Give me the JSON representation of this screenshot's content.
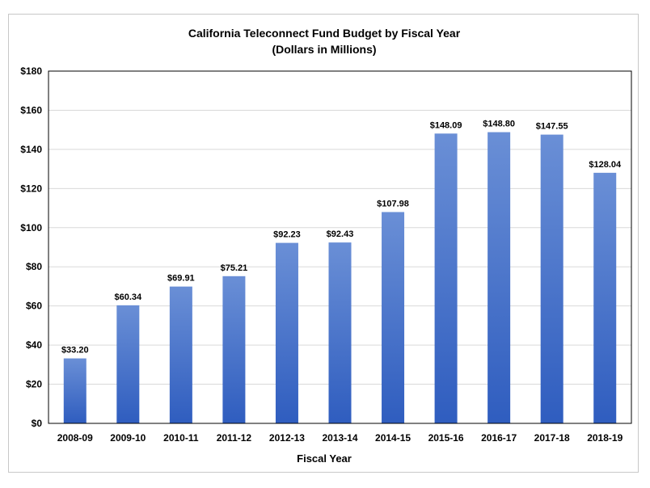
{
  "chart_data": {
    "type": "bar",
    "title": "California Teleconnect Fund Budget by Fiscal Year",
    "subtitle": "(Dollars in Millions)",
    "xlabel": "Fiscal Year",
    "ylabel": "",
    "categories": [
      "2008-09",
      "2009-10",
      "2010-11",
      "2011-12",
      "2012-13",
      "2013-14",
      "2014-15",
      "2015-16",
      "2016-17",
      "2017-18",
      "2018-19"
    ],
    "values": [
      33.2,
      60.34,
      69.91,
      75.21,
      92.23,
      92.43,
      107.98,
      148.09,
      148.8,
      147.55,
      128.04
    ],
    "data_labels": [
      "$33.20",
      "$60.34",
      "$69.91",
      "$75.21",
      "$92.23",
      "$92.43",
      "$107.98",
      "$148.09",
      "$148.80",
      "$147.55",
      "$128.04"
    ],
    "ylim": [
      0,
      180
    ],
    "y_ticks": [
      0,
      20,
      40,
      60,
      80,
      100,
      120,
      140,
      160,
      180
    ],
    "y_tick_labels": [
      "$0",
      "$20",
      "$40",
      "$60",
      "$80",
      "$100",
      "$120",
      "$140",
      "$160",
      "$180"
    ],
    "grid": true,
    "legend": "none",
    "colors": {
      "bar_top": "#6a8fd6",
      "bar_bottom": "#2f5dbf",
      "gridline": "#d9d9d9",
      "plot_border": "#000000"
    }
  }
}
